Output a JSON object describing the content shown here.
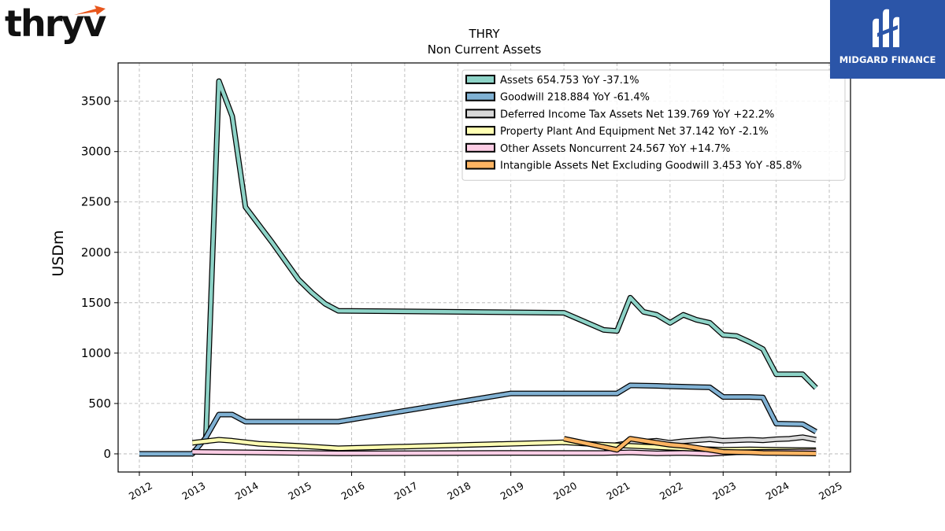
{
  "branding": {
    "left_logo": "thryv",
    "right_logo": "MIDGARD FINANCE"
  },
  "chart_data": {
    "type": "line",
    "title": "THRY",
    "subtitle": "Non Current  Assets",
    "xlabel": "",
    "ylabel": "USDm",
    "xlim": [
      2011.6,
      2025.4
    ],
    "ylim": [
      -180,
      3880
    ],
    "yticks": [
      0,
      500,
      1000,
      1500,
      2000,
      2500,
      3000,
      3500
    ],
    "xticks": [
      2012,
      2013,
      2014,
      2015,
      2016,
      2017,
      2018,
      2019,
      2020,
      2021,
      2022,
      2023,
      2024,
      2025
    ],
    "grid": true,
    "legend_position": "top-right",
    "series": [
      {
        "name": "Assets  654.753 YoY -37.1%",
        "color": "#8dd3c7",
        "points": [
          [
            2013.25,
            100
          ],
          [
            2013.5,
            3700
          ],
          [
            2013.75,
            3350
          ],
          [
            2014.0,
            2450
          ],
          [
            2014.5,
            2100
          ],
          [
            2015.0,
            1730
          ],
          [
            2015.25,
            1600
          ],
          [
            2015.5,
            1490
          ],
          [
            2015.75,
            1420
          ],
          [
            2020.0,
            1400
          ],
          [
            2020.75,
            1230
          ],
          [
            2021.0,
            1220
          ],
          [
            2021.25,
            1550
          ],
          [
            2021.5,
            1410
          ],
          [
            2021.75,
            1380
          ],
          [
            2022.0,
            1300
          ],
          [
            2022.25,
            1380
          ],
          [
            2022.5,
            1330
          ],
          [
            2022.75,
            1300
          ],
          [
            2023.0,
            1180
          ],
          [
            2023.25,
            1170
          ],
          [
            2023.5,
            1110
          ],
          [
            2023.75,
            1040
          ],
          [
            2024.0,
            790
          ],
          [
            2024.5,
            790
          ],
          [
            2024.75,
            655
          ]
        ]
      },
      {
        "name": "Goodwill  218.884 YoY -61.4%",
        "color": "#80b1d3",
        "points": [
          [
            2012.0,
            0
          ],
          [
            2013.0,
            0
          ],
          [
            2013.25,
            160
          ],
          [
            2013.5,
            390
          ],
          [
            2013.75,
            390
          ],
          [
            2014.0,
            320
          ],
          [
            2015.75,
            320
          ],
          [
            2019.0,
            600
          ],
          [
            2021.0,
            600
          ],
          [
            2021.25,
            680
          ],
          [
            2021.75,
            675
          ],
          [
            2022.0,
            670
          ],
          [
            2022.75,
            660
          ],
          [
            2023.0,
            565
          ],
          [
            2023.5,
            565
          ],
          [
            2023.75,
            560
          ],
          [
            2024.0,
            300
          ],
          [
            2024.5,
            295
          ],
          [
            2024.75,
            220
          ]
        ]
      },
      {
        "name": "Deferred Income Tax Assets Net  139.769 YoY +22.2%",
        "color": "#d9d9d9",
        "points": [
          [
            2020.75,
            60
          ],
          [
            2021.0,
            90
          ],
          [
            2021.25,
            110
          ],
          [
            2021.75,
            130
          ],
          [
            2022.0,
            110
          ],
          [
            2022.25,
            125
          ],
          [
            2022.75,
            145
          ],
          [
            2023.0,
            130
          ],
          [
            2023.5,
            140
          ],
          [
            2023.75,
            135
          ],
          [
            2024.0,
            145
          ],
          [
            2024.25,
            150
          ],
          [
            2024.5,
            165
          ],
          [
            2024.75,
            140
          ]
        ]
      },
      {
        "name": "Property Plant And Equipment Net  37.142 YoY -2.1%",
        "color": "#ffffb3",
        "points": [
          [
            2013.0,
            110
          ],
          [
            2013.5,
            140
          ],
          [
            2013.75,
            130
          ],
          [
            2014.25,
            100
          ],
          [
            2015.0,
            80
          ],
          [
            2015.75,
            55
          ],
          [
            2019.0,
            100
          ],
          [
            2020.0,
            115
          ],
          [
            2020.75,
            90
          ],
          [
            2021.25,
            80
          ],
          [
            2022.0,
            60
          ],
          [
            2022.5,
            50
          ],
          [
            2023.0,
            40
          ],
          [
            2023.5,
            45
          ],
          [
            2024.0,
            40
          ],
          [
            2024.5,
            38
          ],
          [
            2024.75,
            37
          ]
        ]
      },
      {
        "name": "Other Assets Noncurrent  24.567 YoY +14.7%",
        "color": "#fccde5",
        "points": [
          [
            2013.0,
            20
          ],
          [
            2014.0,
            15
          ],
          [
            2015.0,
            10
          ],
          [
            2015.75,
            5
          ],
          [
            2019.0,
            10
          ],
          [
            2020.75,
            8
          ],
          [
            2021.25,
            15
          ],
          [
            2021.75,
            5
          ],
          [
            2022.25,
            10
          ],
          [
            2022.75,
            0
          ],
          [
            2023.25,
            15
          ],
          [
            2023.75,
            20
          ],
          [
            2024.25,
            22
          ],
          [
            2024.75,
            25
          ]
        ]
      },
      {
        "name": "Intangible Assets Net Excluding Goodwill  3.453 YoY -85.8%",
        "color": "#fdb462",
        "points": [
          [
            2020.0,
            150
          ],
          [
            2021.0,
            40
          ],
          [
            2021.25,
            150
          ],
          [
            2021.75,
            110
          ],
          [
            2022.0,
            90
          ],
          [
            2022.25,
            80
          ],
          [
            2022.75,
            40
          ],
          [
            2023.0,
            20
          ],
          [
            2023.5,
            15
          ],
          [
            2023.75,
            10
          ],
          [
            2024.0,
            8
          ],
          [
            2024.5,
            5
          ],
          [
            2024.75,
            3.5
          ]
        ]
      }
    ]
  }
}
